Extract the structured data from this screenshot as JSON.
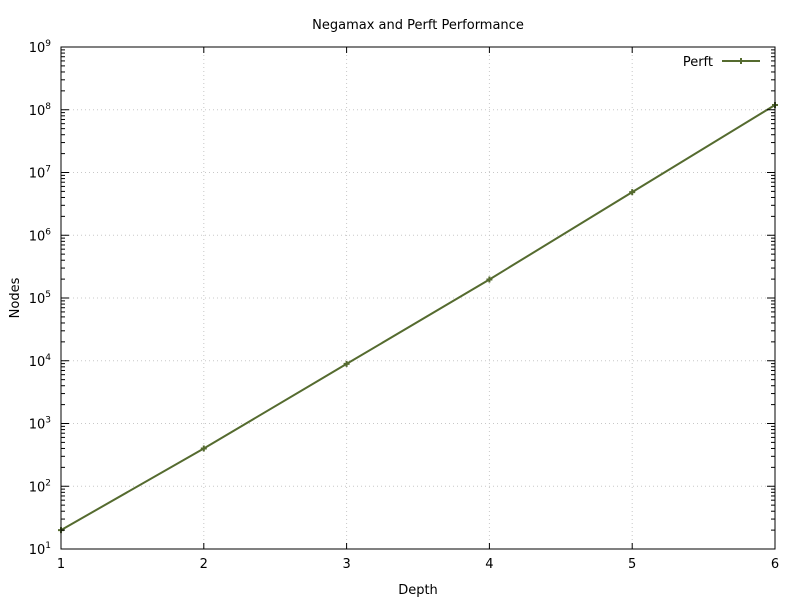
{
  "chart_data": {
    "type": "line",
    "title": "Negamax and Perft Performance",
    "xlabel": "Depth",
    "ylabel": "Nodes",
    "xlim": [
      1,
      6
    ],
    "ylim": [
      10,
      1000000000
    ],
    "yscale": "log",
    "grid": true,
    "legend_position": "top-right",
    "x_ticks": [
      "1",
      "2",
      "3",
      "4",
      "5",
      "6"
    ],
    "y_ticks": [
      {
        "base": "10",
        "exp": "1"
      },
      {
        "base": "10",
        "exp": "2"
      },
      {
        "base": "10",
        "exp": "3"
      },
      {
        "base": "10",
        "exp": "4"
      },
      {
        "base": "10",
        "exp": "5"
      },
      {
        "base": "10",
        "exp": "6"
      },
      {
        "base": "10",
        "exp": "7"
      },
      {
        "base": "10",
        "exp": "8"
      },
      {
        "base": "10",
        "exp": "9"
      }
    ],
    "series": [
      {
        "name": "Perft",
        "color": "#556b2f",
        "x": [
          1,
          2,
          3,
          4,
          5,
          6
        ],
        "values": [
          20,
          400,
          8902,
          197281,
          4865609,
          119060324
        ]
      }
    ]
  }
}
